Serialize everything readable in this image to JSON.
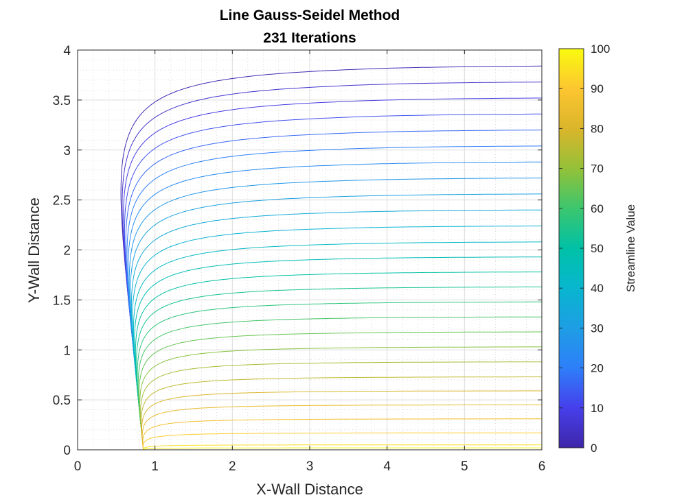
{
  "chart_data": {
    "type": "contour",
    "title": "Line Gauss-Seidel Method",
    "subtitle": "231 Iterations",
    "xlabel": "X-Wall Distance",
    "ylabel": "Y-Wall Distance",
    "xlim": [
      0,
      6
    ],
    "ylim": [
      0,
      4
    ],
    "xticks": [
      "0",
      "1",
      "2",
      "3",
      "4",
      "5",
      "6"
    ],
    "yticks": [
      "0",
      "0.5",
      "1",
      "1.5",
      "2",
      "2.5",
      "3",
      "3.5",
      "4"
    ],
    "grid": true,
    "minor_grid": true,
    "colorbar": {
      "label": "Streamline Value",
      "range": [
        0,
        100
      ],
      "ticks": [
        "0",
        "10",
        "20",
        "30",
        "40",
        "50",
        "60",
        "70",
        "80",
        "90",
        "100"
      ],
      "colormap": "parula"
    },
    "source_x": 0.85,
    "streamlines": {
      "count": 27,
      "min_value": 1.5,
      "max_value": 98.5,
      "far_field_y": [
        3.84,
        3.68,
        3.52,
        3.36,
        3.2,
        3.04,
        2.88,
        2.72,
        2.56,
        2.4,
        2.24,
        2.08,
        1.93,
        1.78,
        1.63,
        1.48,
        1.33,
        1.18,
        1.03,
        0.88,
        0.73,
        0.59,
        0.45,
        0.31,
        0.17,
        0.05,
        0.02
      ]
    }
  }
}
